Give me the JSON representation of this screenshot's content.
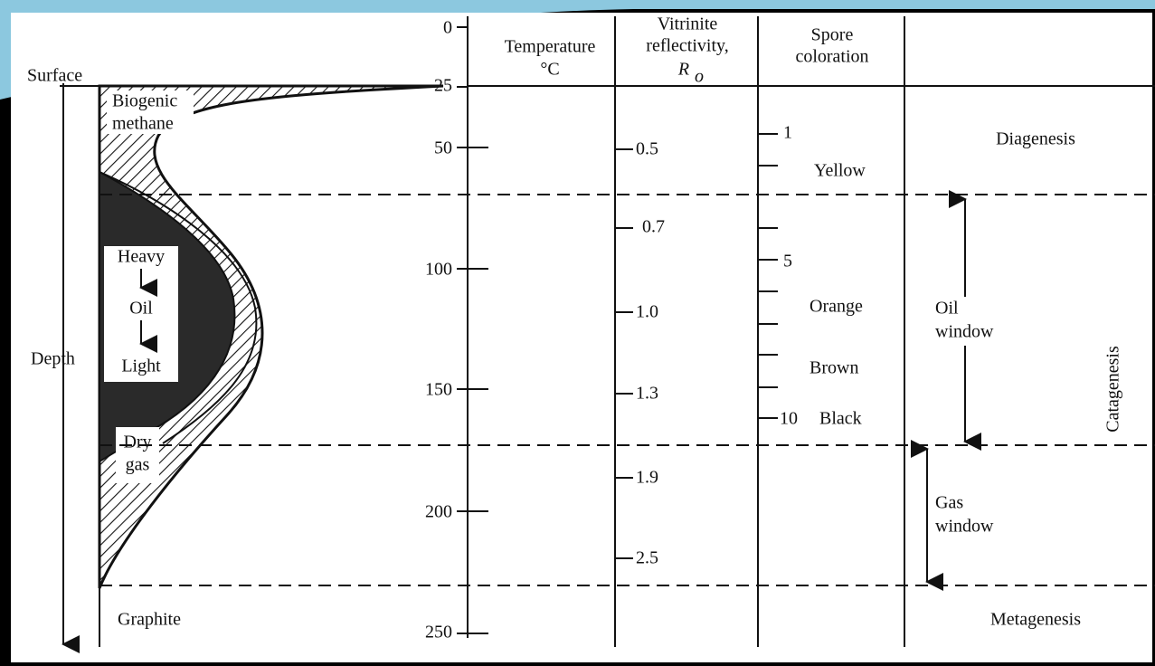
{
  "left": {
    "surface": "Surface",
    "depth": "Depth",
    "biogenic_methane": [
      "Biogenic",
      "methane"
    ],
    "oil": [
      "Heavy",
      "Oil",
      "Light"
    ],
    "dry_gas": [
      "Dry",
      "gas"
    ],
    "graphite": "Graphite"
  },
  "temperature": {
    "header": [
      "Temperature",
      "°C"
    ],
    "ticks": [
      "0",
      "25",
      "50",
      "100",
      "150",
      "200",
      "250"
    ]
  },
  "vitrinite": {
    "header": [
      "Vitrinite",
      "reflectivity,",
      "R",
      "o"
    ],
    "ticks": [
      "0.5",
      "0.7",
      "1.0",
      "1.3",
      "1.9",
      "2.5"
    ]
  },
  "spore": {
    "header": [
      "Spore",
      "coloration"
    ],
    "ticks": [
      "1",
      "5",
      "10"
    ],
    "colors": [
      "Yellow",
      "Orange",
      "Brown",
      "Black"
    ]
  },
  "stages": {
    "diagenesis": "Diagenesis",
    "oil_window": [
      "Oil",
      "window"
    ],
    "catagenesis": "Catagenesis",
    "gas_window": [
      "Gas",
      "window"
    ],
    "metagenesis": "Metagenesis"
  }
}
